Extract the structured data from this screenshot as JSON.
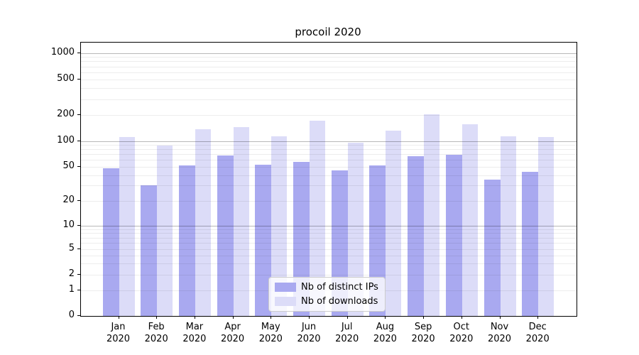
{
  "chart_data": {
    "type": "bar",
    "title": "procoil 2020",
    "categories": [
      "Jan",
      "Feb",
      "Mar",
      "Apr",
      "May",
      "Jun",
      "Jul",
      "Aug",
      "Sep",
      "Oct",
      "Nov",
      "Dec"
    ],
    "x_year": "2020",
    "series": [
      {
        "name": "Nb of distinct IPs",
        "color": "#a9a9f0",
        "values": [
          48,
          30,
          52,
          68,
          53,
          57,
          45,
          52,
          67,
          69,
          35,
          44
        ]
      },
      {
        "name": "Nb of downloads",
        "color": "#dcdcf8",
        "values": [
          112,
          89,
          137,
          145,
          114,
          172,
          96,
          132,
          205,
          157,
          113,
          110
        ]
      }
    ],
    "yaxis": {
      "scale": "symlog",
      "tick_labels": [
        "0",
        "1",
        "2",
        "5",
        "10",
        "20",
        "50",
        "100",
        "200",
        "500",
        "1000"
      ],
      "tick_values": [
        0,
        1,
        2,
        5,
        10,
        20,
        50,
        100,
        200,
        500,
        1000
      ],
      "ylim": [
        0,
        1300
      ]
    },
    "grid": {
      "horizontal": true,
      "minor_log_lines": true
    },
    "legend": {
      "position": "lower-center-inside"
    }
  },
  "colors": {
    "bar_dark": "#a9a9f0",
    "bar_light": "#dcdcf8",
    "axis": "#000000",
    "grid_minor": "rgba(0,0,0,0.07)",
    "grid_major": "rgba(0,0,0,0.28)",
    "legend_border": "#cccccc",
    "background": "#ffffff"
  }
}
